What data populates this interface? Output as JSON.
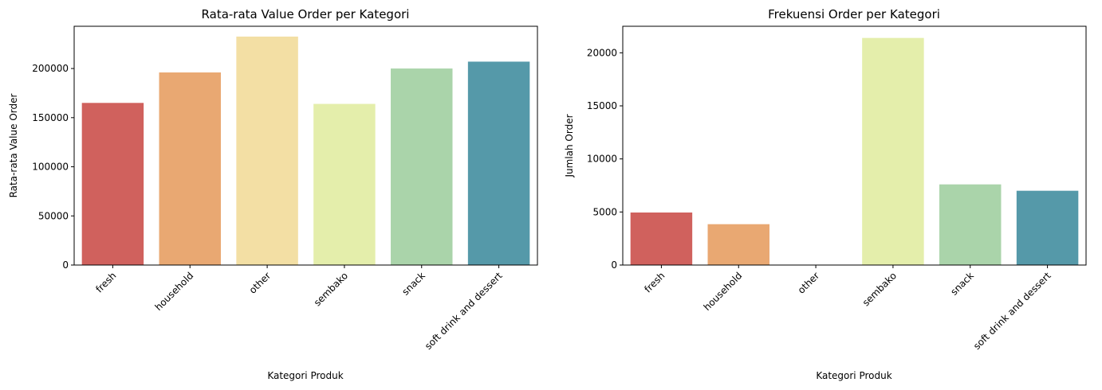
{
  "chart_data": [
    {
      "type": "bar",
      "title": "Rata-rata Value Order per Kategori",
      "xlabel": "Kategori Produk",
      "ylabel": "Rata-rata Value Order",
      "categories": [
        "fresh",
        "household",
        "other",
        "sembako",
        "snack",
        "soft drink and dessert"
      ],
      "values": [
        165000,
        196000,
        232500,
        164000,
        200000,
        207000
      ],
      "ylim": [
        0,
        243000
      ],
      "yticks": [
        0,
        50000,
        100000,
        150000,
        200000
      ],
      "ytick_labels": [
        "0",
        "50000",
        "100000",
        "150000",
        "200000"
      ],
      "colors": [
        "#d0615d",
        "#e9a872",
        "#f3dfa4",
        "#e4eeab",
        "#aad4aa",
        "#5599a9"
      ],
      "grid": false,
      "legend": "none"
    },
    {
      "type": "bar",
      "title": "Frekuensi Order per Kategori",
      "xlabel": "Kategori Produk",
      "ylabel": "Jumlah Order",
      "categories": [
        "fresh",
        "household",
        "other",
        "sembako",
        "snack",
        "soft drink and dessert"
      ],
      "values": [
        4950,
        3850,
        12,
        21400,
        7600,
        7000
      ],
      "ylim": [
        0,
        22500
      ],
      "yticks": [
        0,
        5000,
        10000,
        15000,
        20000
      ],
      "ytick_labels": [
        "0",
        "5000",
        "10000",
        "15000",
        "20000"
      ],
      "colors": [
        "#d0615d",
        "#e9a872",
        "#f3dfa4",
        "#e4eeab",
        "#aad4aa",
        "#5599a9"
      ],
      "grid": false,
      "legend": "none"
    }
  ]
}
